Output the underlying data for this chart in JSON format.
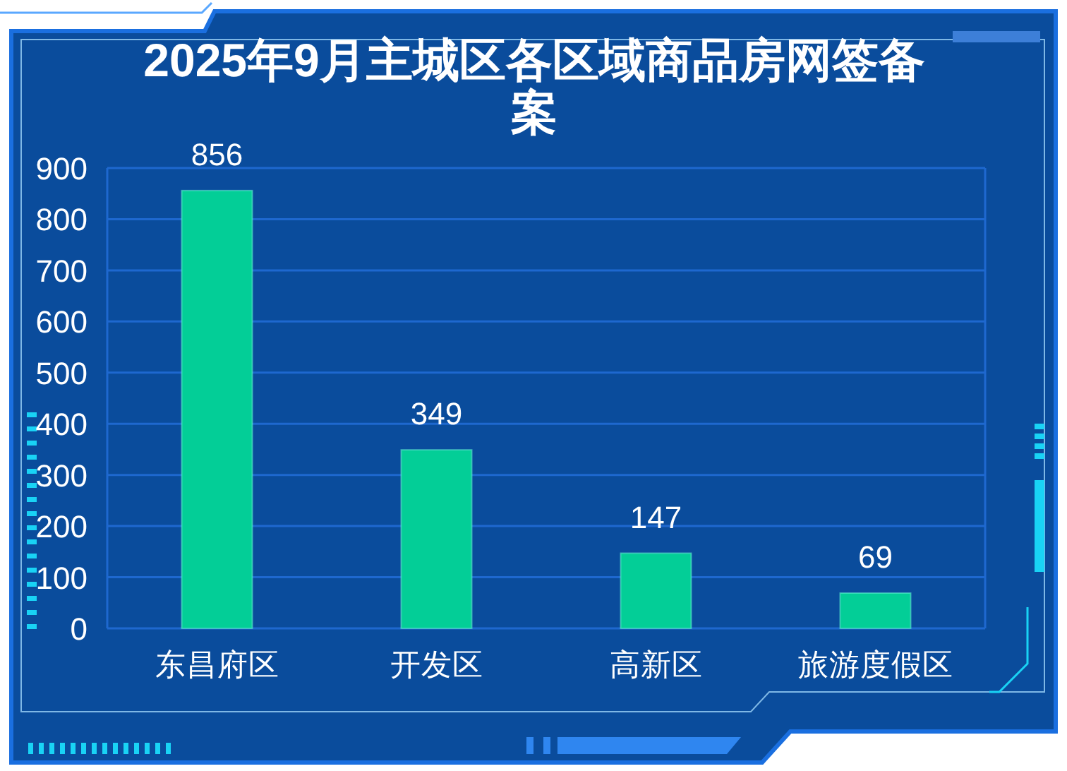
{
  "chart_data": {
    "type": "bar",
    "title": "2025年9月主城区各区域商品房网签备案",
    "categories": [
      "东昌府区",
      "开发区",
      "高新区",
      "旅游度假区"
    ],
    "values": [
      856,
      349,
      147,
      69
    ],
    "color": "#03ce97",
    "ylim": [
      0,
      900
    ],
    "yticks": [
      0,
      100,
      200,
      300,
      400,
      500,
      600,
      700,
      800,
      900
    ],
    "grid": "y",
    "data_labels": true
  }
}
